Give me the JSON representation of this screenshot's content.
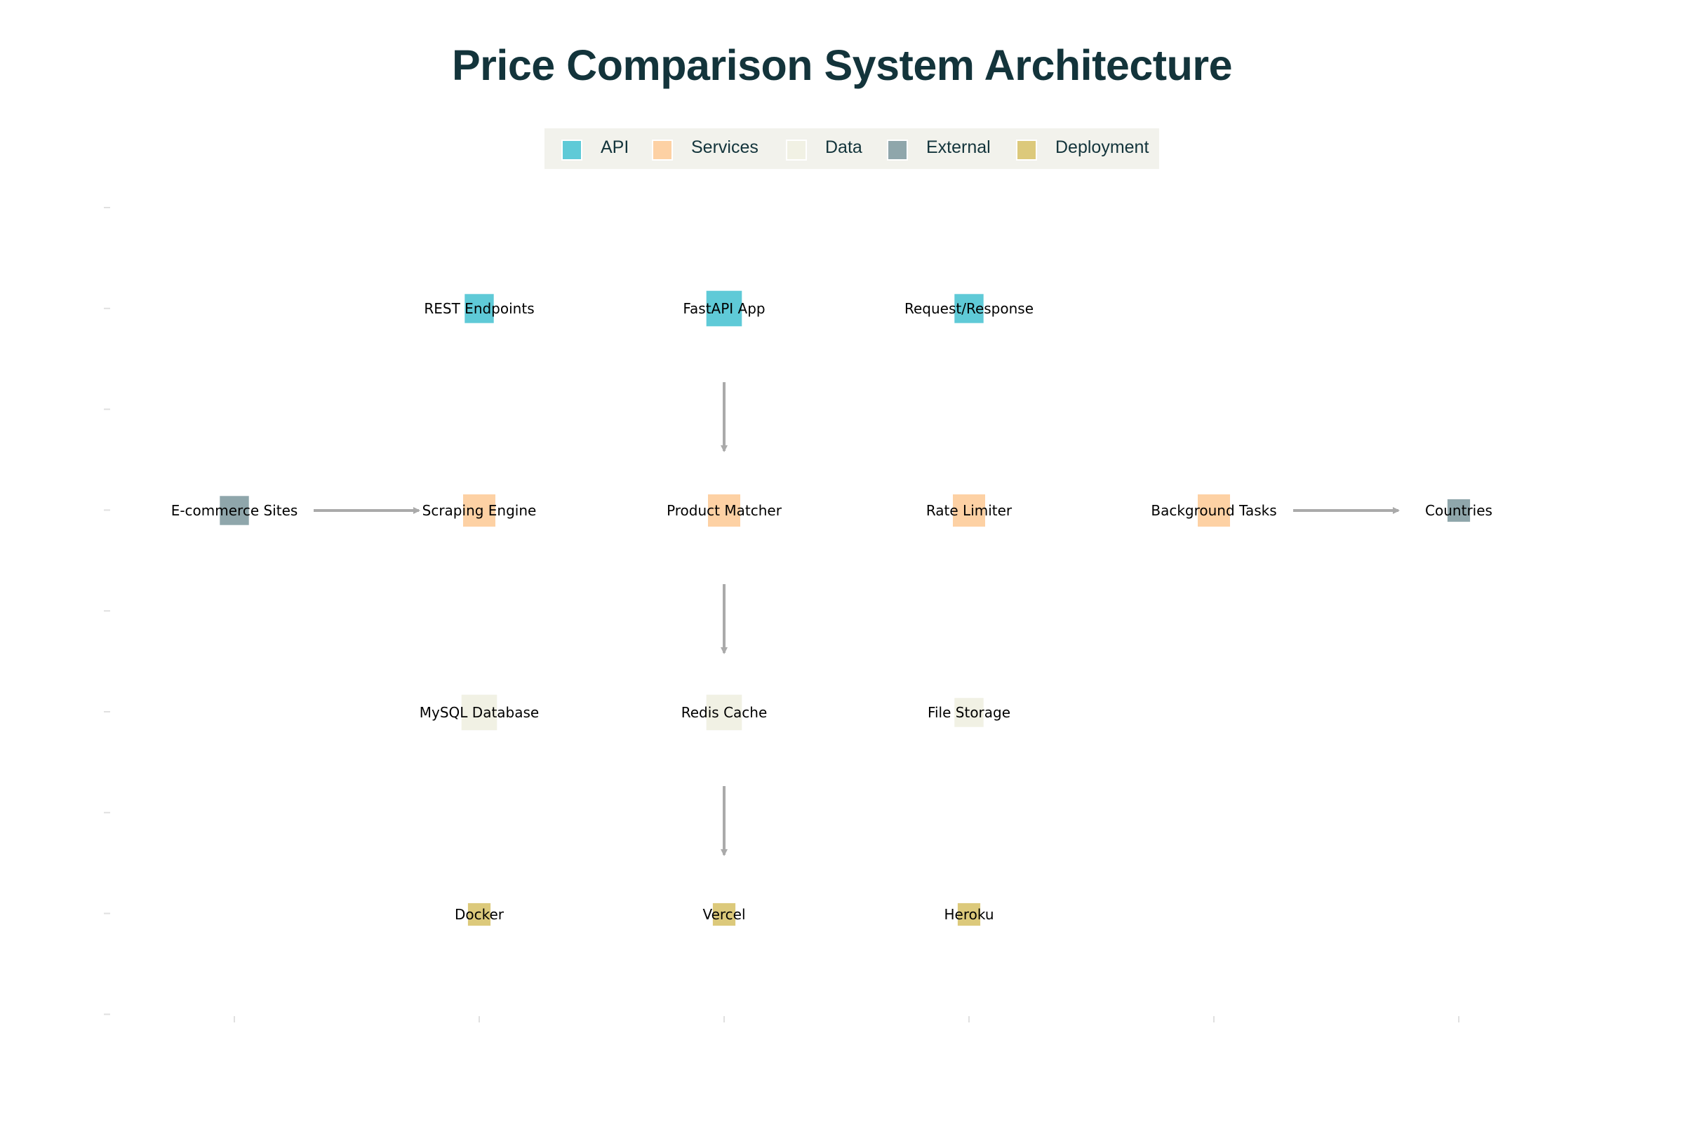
{
  "title": "Price Comparison System Architecture",
  "legend": [
    {
      "label": "API",
      "color": "#5fcad7"
    },
    {
      "label": "Services",
      "color": "#fdd1a4"
    },
    {
      "label": "Data",
      "color": "#f1f1e4"
    },
    {
      "label": "External",
      "color": "#8fa6ab"
    },
    {
      "label": "Deployment",
      "color": "#dcc97b"
    }
  ],
  "nodes": [
    {
      "id": "rest",
      "label": "REST Endpoints",
      "category": "API",
      "col": 2,
      "row": 1,
      "size": 0.9
    },
    {
      "id": "fastapi",
      "label": "FastAPI App",
      "category": "API",
      "col": 3,
      "row": 1,
      "size": 1.1
    },
    {
      "id": "reqres",
      "label": "Request/Response",
      "category": "API",
      "col": 4,
      "row": 1,
      "size": 0.9
    },
    {
      "id": "ecommerce",
      "label": "E-commerce Sites",
      "category": "External",
      "col": 1,
      "row": 2,
      "size": 0.9
    },
    {
      "id": "scraping",
      "label": "Scraping Engine",
      "category": "Services",
      "col": 2,
      "row": 2,
      "size": 1.0
    },
    {
      "id": "matcher",
      "label": "Product Matcher",
      "category": "Services",
      "col": 3,
      "row": 2,
      "size": 1.0
    },
    {
      "id": "ratelimit",
      "label": "Rate Limiter",
      "category": "Services",
      "col": 4,
      "row": 2,
      "size": 1.0
    },
    {
      "id": "background",
      "label": "Background Tasks",
      "category": "Services",
      "col": 5,
      "row": 2,
      "size": 1.0
    },
    {
      "id": "countries",
      "label": "Countries",
      "category": "External",
      "col": 6,
      "row": 2,
      "size": 0.7
    },
    {
      "id": "mysql",
      "label": "MySQL Database",
      "category": "Data",
      "col": 2,
      "row": 3,
      "size": 1.1
    },
    {
      "id": "redis",
      "label": "Redis Cache",
      "category": "Data",
      "col": 3,
      "row": 3,
      "size": 1.1
    },
    {
      "id": "files",
      "label": "File Storage",
      "category": "Data",
      "col": 4,
      "row": 3,
      "size": 0.9
    },
    {
      "id": "docker",
      "label": "Docker",
      "category": "Deployment",
      "col": 2,
      "row": 4,
      "size": 0.7
    },
    {
      "id": "vercel",
      "label": "Vercel",
      "category": "Deployment",
      "col": 3,
      "row": 4,
      "size": 0.7
    },
    {
      "id": "heroku",
      "label": "Heroku",
      "category": "Deployment",
      "col": 4,
      "row": 4,
      "size": 0.7
    }
  ],
  "edges": [
    {
      "from": "fastapi",
      "to": "matcher"
    },
    {
      "from": "matcher",
      "to": "redis"
    },
    {
      "from": "redis",
      "to": "vercel"
    },
    {
      "from": "ecommerce",
      "to": "scraping"
    },
    {
      "from": "background",
      "to": "countries"
    }
  ]
}
